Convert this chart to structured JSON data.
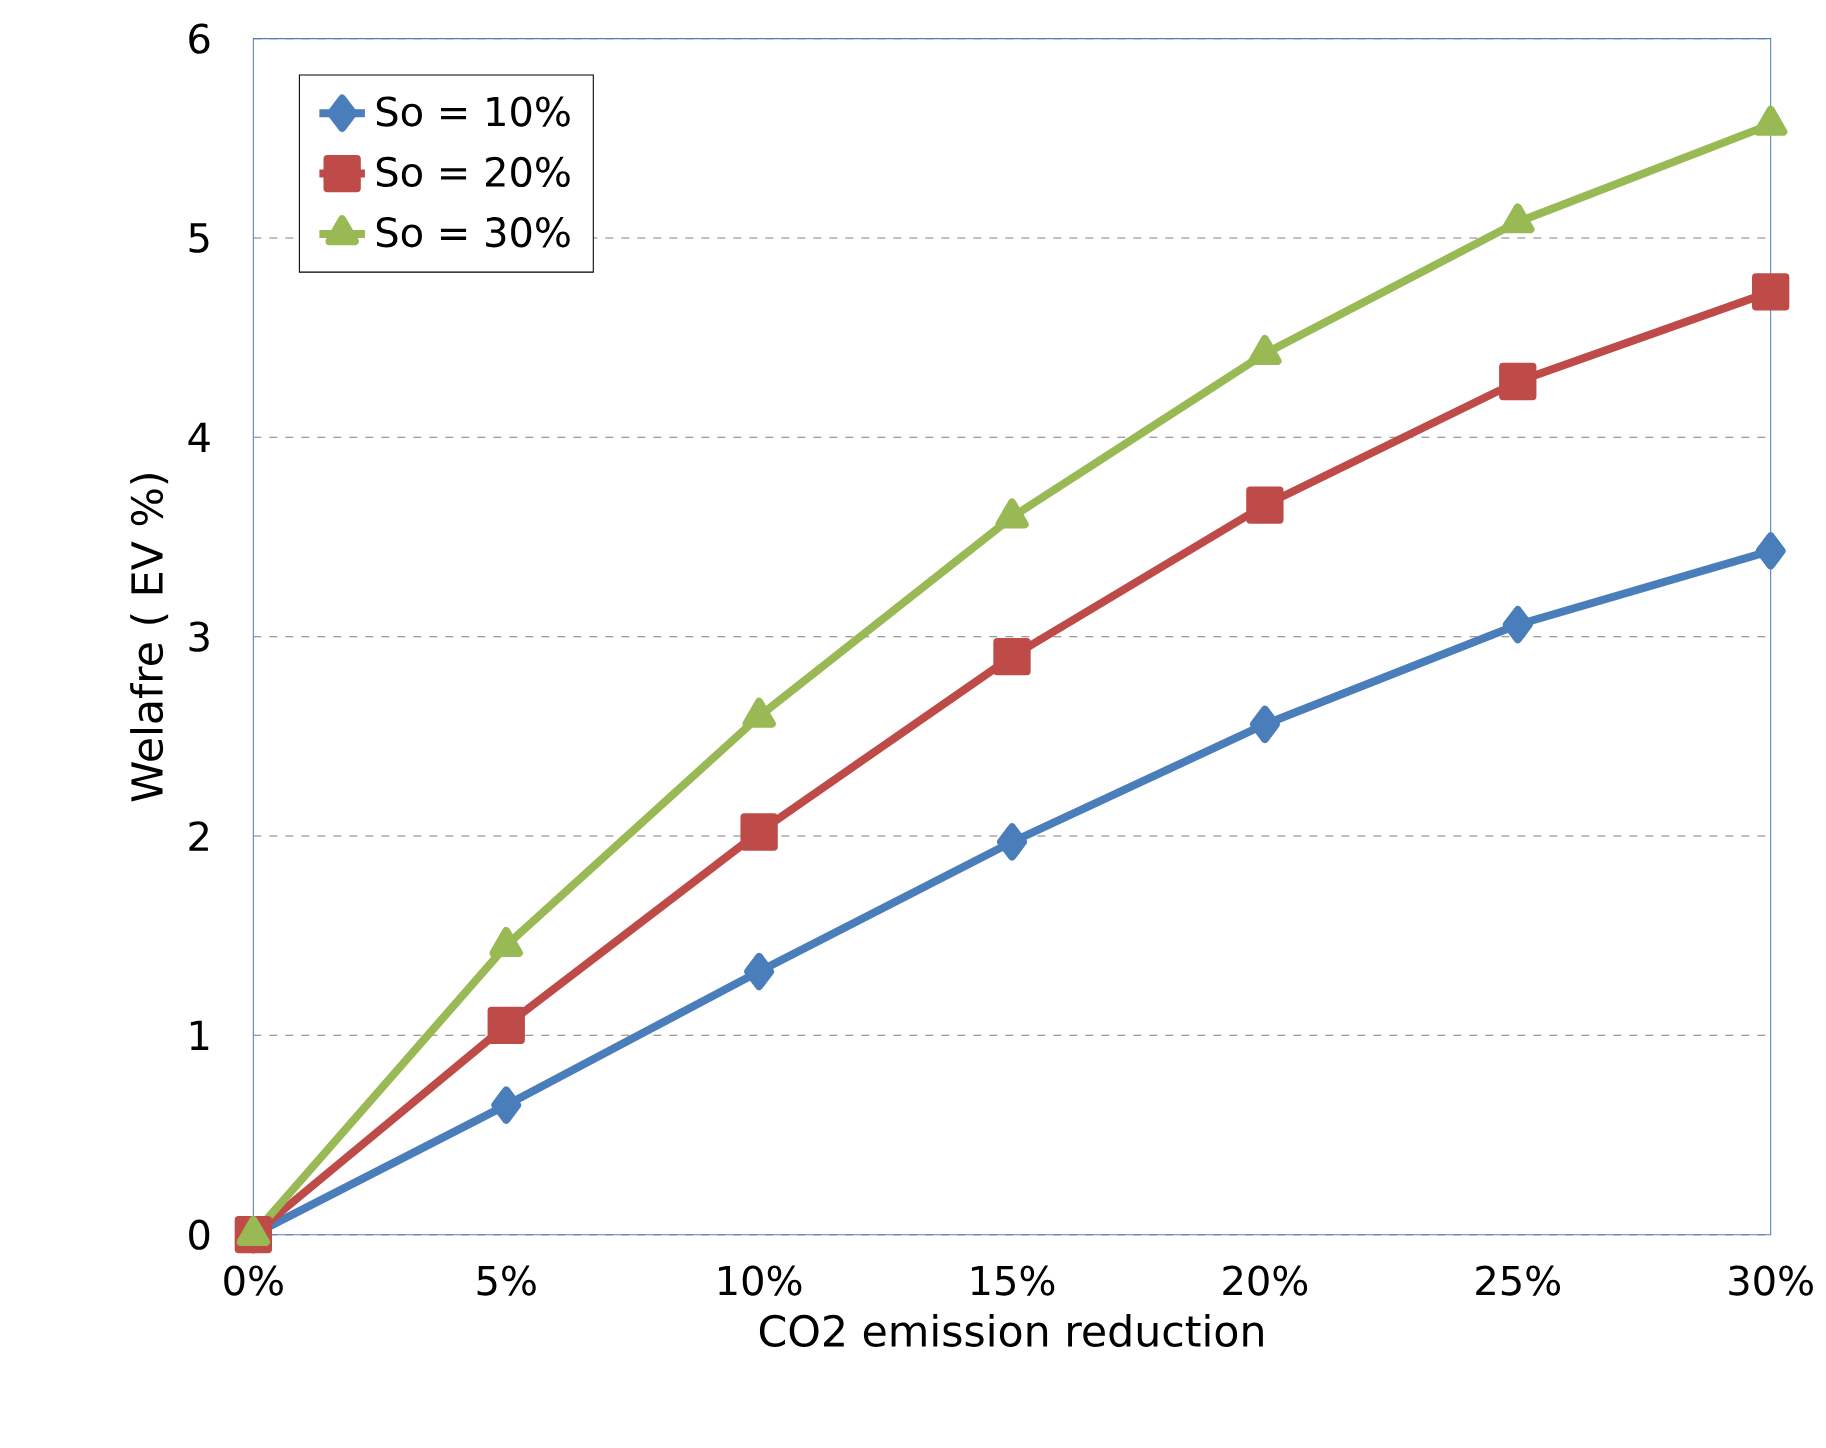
{
  "chart_data": {
    "type": "line",
    "xlabel": "CO2 emission reduction",
    "ylabel": "Welafre ( EV %)",
    "categories": [
      "0%",
      "5%",
      "10%",
      "15%",
      "20%",
      "25%",
      "30%"
    ],
    "ylim": [
      0,
      6
    ],
    "yticks": [
      0,
      1,
      2,
      3,
      4,
      5,
      6
    ],
    "grid": "y",
    "legend": "top left",
    "line_style": "solid",
    "series": [
      {
        "name": "So = 10%",
        "color": "#4a7ebb",
        "marker": "diamond",
        "values": [
          0,
          0.65,
          1.32,
          1.97,
          2.56,
          3.06,
          3.43
        ]
      },
      {
        "name": "So = 20%",
        "color": "#be4b48",
        "marker": "square",
        "values": [
          0,
          1.05,
          2.02,
          2.9,
          3.66,
          4.28,
          4.73
        ]
      },
      {
        "name": "So = 30%",
        "color": "#98b954",
        "marker": "triangle",
        "values": [
          0,
          1.45,
          2.6,
          3.6,
          4.42,
          5.08,
          5.57
        ]
      }
    ]
  }
}
